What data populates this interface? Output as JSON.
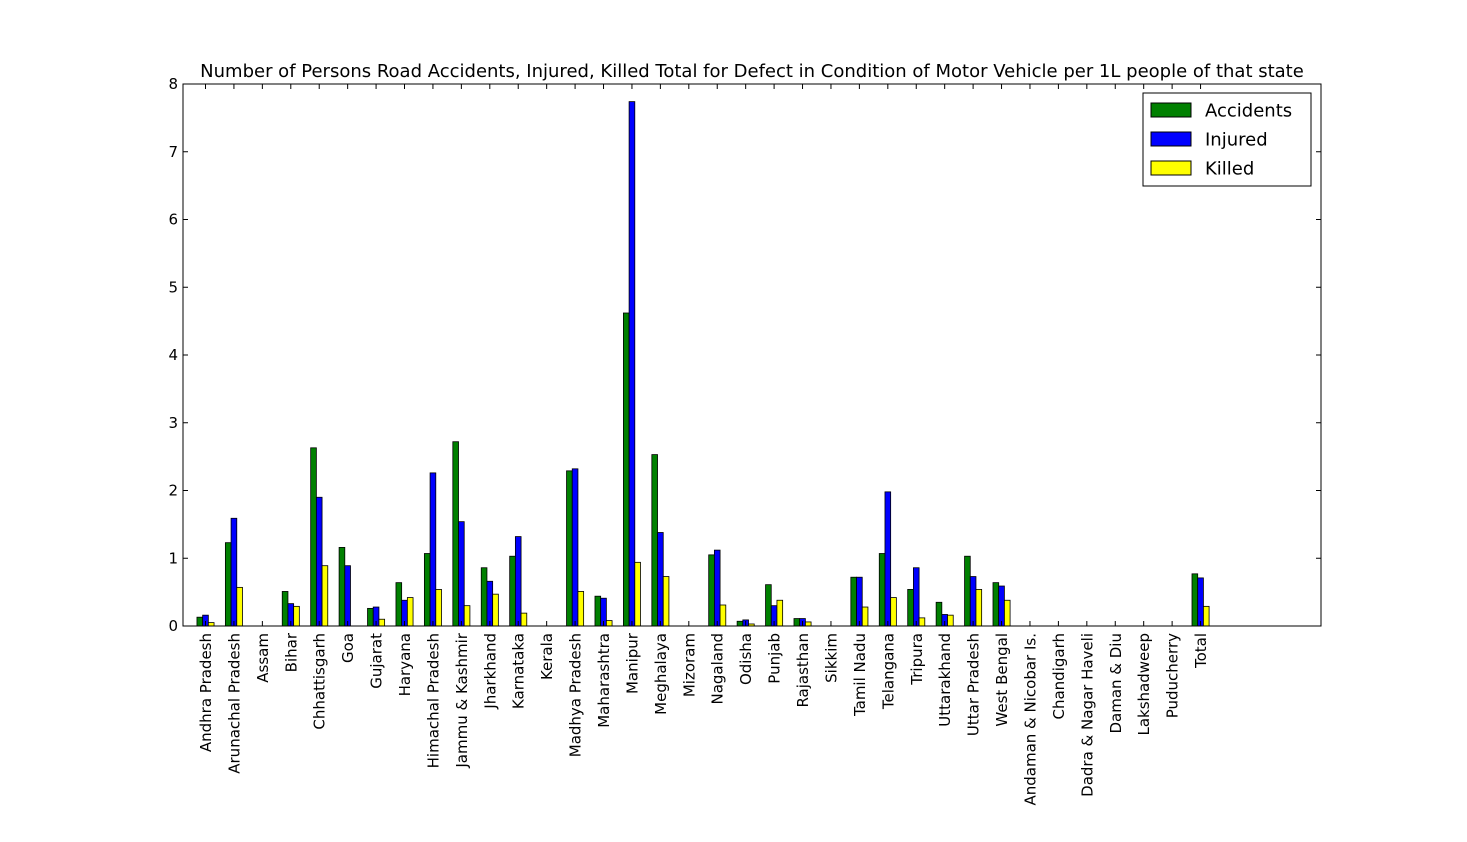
{
  "chart_data": {
    "type": "bar",
    "title": "Number of Persons Road Accidents, Injured, Killed Total for Defect in Condition of Motor Vehicle per 1L people of that state",
    "xlabel": "",
    "ylabel": "",
    "ylim": [
      0,
      8
    ],
    "yticks": [
      "0",
      "1",
      "2",
      "3",
      "4",
      "5",
      "6",
      "7",
      "8"
    ],
    "grid": false,
    "legend_position": "top-right",
    "categories": [
      "Andhra Pradesh",
      "Arunachal Pradesh",
      "Assam",
      "Bihar",
      "Chhattisgarh",
      "Goa",
      "Gujarat",
      "Haryana",
      "Himachal Pradesh",
      "Jammu & Kashmir",
      "Jharkhand",
      "Karnataka",
      "Kerala",
      "Madhya Pradesh",
      "Maharashtra",
      "Manipur",
      "Meghalaya",
      "Mizoram",
      "Nagaland",
      "Odisha",
      "Punjab",
      "Rajasthan",
      "Sikkim",
      "Tamil Nadu",
      "Telangana",
      "Tripura",
      "Uttarakhand",
      "Uttar Pradesh",
      "West Bengal",
      "Andaman & Nicobar Is.",
      "Chandigarh",
      "Dadra & Nagar Haveli",
      "Daman & Diu",
      "Lakshadweep",
      "Puducherry",
      "Total"
    ],
    "series": [
      {
        "name": "Accidents",
        "color": "#008000",
        "values": [
          0.13,
          1.23,
          0,
          0.51,
          2.63,
          1.16,
          0.26,
          0.64,
          1.07,
          2.72,
          0.86,
          1.03,
          0,
          2.29,
          0.44,
          4.62,
          2.53,
          0,
          1.05,
          0.07,
          0.61,
          0.11,
          0,
          0.72,
          1.07,
          0.54,
          0.35,
          1.03,
          0.64,
          0,
          0,
          0,
          0,
          0,
          0,
          0.77
        ]
      },
      {
        "name": "Injured",
        "color": "#0000ff",
        "values": [
          0.16,
          1.59,
          0,
          0.33,
          1.9,
          0.89,
          0.28,
          0.38,
          2.26,
          1.54,
          0.66,
          1.32,
          0,
          2.32,
          0.41,
          7.74,
          1.38,
          0,
          1.12,
          0.09,
          0.3,
          0.11,
          0,
          0.72,
          1.98,
          0.86,
          0.17,
          0.73,
          0.59,
          0,
          0,
          0,
          0,
          0,
          0,
          0.71
        ]
      },
      {
        "name": "Killed",
        "color": "#ffff00",
        "values": [
          0.05,
          0.57,
          0,
          0.29,
          0.89,
          0,
          0.1,
          0.42,
          0.54,
          0.3,
          0.47,
          0.19,
          0,
          0.51,
          0.08,
          0.94,
          0.73,
          0,
          0.31,
          0.03,
          0.38,
          0.06,
          0,
          0.28,
          0.42,
          0.12,
          0.16,
          0.54,
          0.38,
          0,
          0,
          0,
          0,
          0,
          0,
          0.29
        ]
      }
    ]
  }
}
